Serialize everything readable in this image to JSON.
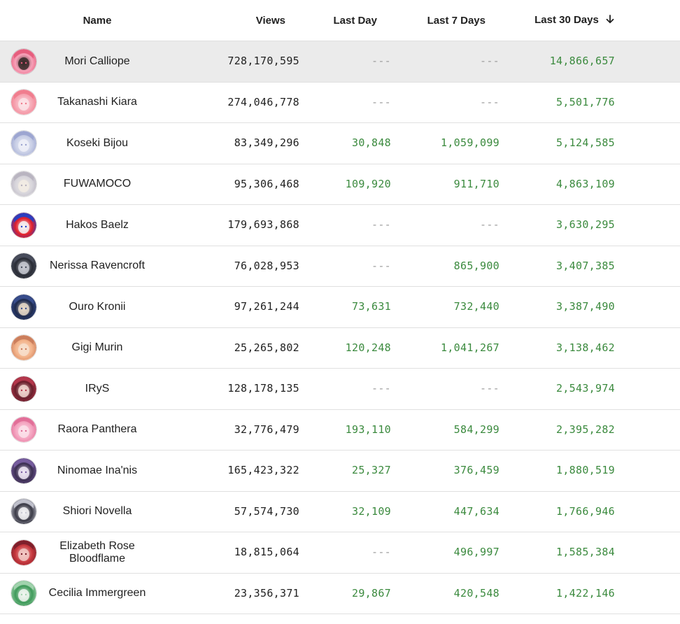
{
  "header": {
    "name": "Name",
    "views": "Views",
    "last_day": "Last Day",
    "last_7_days": "Last 7 Days",
    "last_30_days": "Last 30 Days",
    "sort_icon": "arrow-down-icon"
  },
  "colors": {
    "positive": "#3b8a3e",
    "empty": "#9e9e9e",
    "highlight_row": "#ebebeb"
  },
  "rows": [
    {
      "name": "Mori Calliope",
      "views": "728,170,595",
      "last_day": "---",
      "last_7_days": "---",
      "last_30_days": "14,866,657",
      "avatar_colors": [
        "#f7a1b8",
        "#e45a7a",
        "#3a2a2a"
      ]
    },
    {
      "name": "Takanashi Kiara",
      "views": "274,046,778",
      "last_day": "---",
      "last_7_days": "---",
      "last_30_days": "5,501,776",
      "avatar_colors": [
        "#f6a7b4",
        "#f07b8c",
        "#fce4e8"
      ]
    },
    {
      "name": "Koseki Bijou",
      "views": "83,349,296",
      "last_day": "30,848",
      "last_7_days": "1,059,099",
      "last_30_days": "5,124,585",
      "avatar_colors": [
        "#c9cfe6",
        "#9aa3cf",
        "#eef0f8"
      ]
    },
    {
      "name": "FUWAMOCO",
      "views": "95,306,468",
      "last_day": "109,920",
      "last_7_days": "911,710",
      "last_30_days": "4,863,109",
      "avatar_colors": [
        "#d8d6dc",
        "#b7b2bf",
        "#f2ece4"
      ]
    },
    {
      "name": "Hakos Baelz",
      "views": "179,693,868",
      "last_day": "---",
      "last_7_days": "---",
      "last_30_days": "3,630,295",
      "avatar_colors": [
        "#e2202a",
        "#2040c8",
        "#f5f5f5"
      ]
    },
    {
      "name": "Nerissa Ravencroft",
      "views": "76,028,953",
      "last_day": "---",
      "last_7_days": "865,900",
      "last_30_days": "3,407,385",
      "avatar_colors": [
        "#2a2d36",
        "#4a4f5e",
        "#c7c9d1"
      ]
    },
    {
      "name": "Ouro Kronii",
      "views": "97,261,244",
      "last_day": "73,631",
      "last_7_days": "732,440",
      "last_30_days": "3,387,490",
      "avatar_colors": [
        "#1e2a4d",
        "#3a4f8f",
        "#e7d9c8"
      ]
    },
    {
      "name": "Gigi Murin",
      "views": "25,265,802",
      "last_day": "120,248",
      "last_7_days": "1,041,267",
      "last_30_days": "3,138,462",
      "avatar_colors": [
        "#f3b38a",
        "#c97b5a",
        "#f7dfcc"
      ]
    },
    {
      "name": "IRyS",
      "views": "128,178,135",
      "last_day": "---",
      "last_7_days": "---",
      "last_30_days": "2,543,974",
      "avatar_colors": [
        "#6a1f2c",
        "#b8394e",
        "#f1d6d0"
      ]
    },
    {
      "name": "Raora Panthera",
      "views": "32,776,479",
      "last_day": "193,110",
      "last_7_days": "584,299",
      "last_30_days": "2,395,282",
      "avatar_colors": [
        "#f4a4c0",
        "#e06c96",
        "#fbe1ea"
      ]
    },
    {
      "name": "Ninomae Ina'nis",
      "views": "165,423,322",
      "last_day": "25,327",
      "last_7_days": "376,459",
      "last_30_days": "1,880,519",
      "avatar_colors": [
        "#3c2f52",
        "#7a5fa3",
        "#efe6f5"
      ]
    },
    {
      "name": "Shiori Novella",
      "views": "57,574,730",
      "last_day": "32,109",
      "last_7_days": "447,634",
      "last_30_days": "1,766,946",
      "avatar_colors": [
        "#3a3a46",
        "#c8c9d4",
        "#f3f3f6"
      ]
    },
    {
      "name": "Elizabeth Rose Bloodflame",
      "views": "18,815,064",
      "last_day": "---",
      "last_7_days": "496,997",
      "last_30_days": "1,585,384",
      "avatar_colors": [
        "#c8383e",
        "#7a1e2a",
        "#f2c9c6"
      ]
    },
    {
      "name": "Cecilia Immergreen",
      "views": "23,356,371",
      "last_day": "29,867",
      "last_7_days": "420,548",
      "last_30_days": "1,422,146",
      "avatar_colors": [
        "#3f9a5a",
        "#a7d6b2",
        "#f1f6f1"
      ]
    }
  ]
}
